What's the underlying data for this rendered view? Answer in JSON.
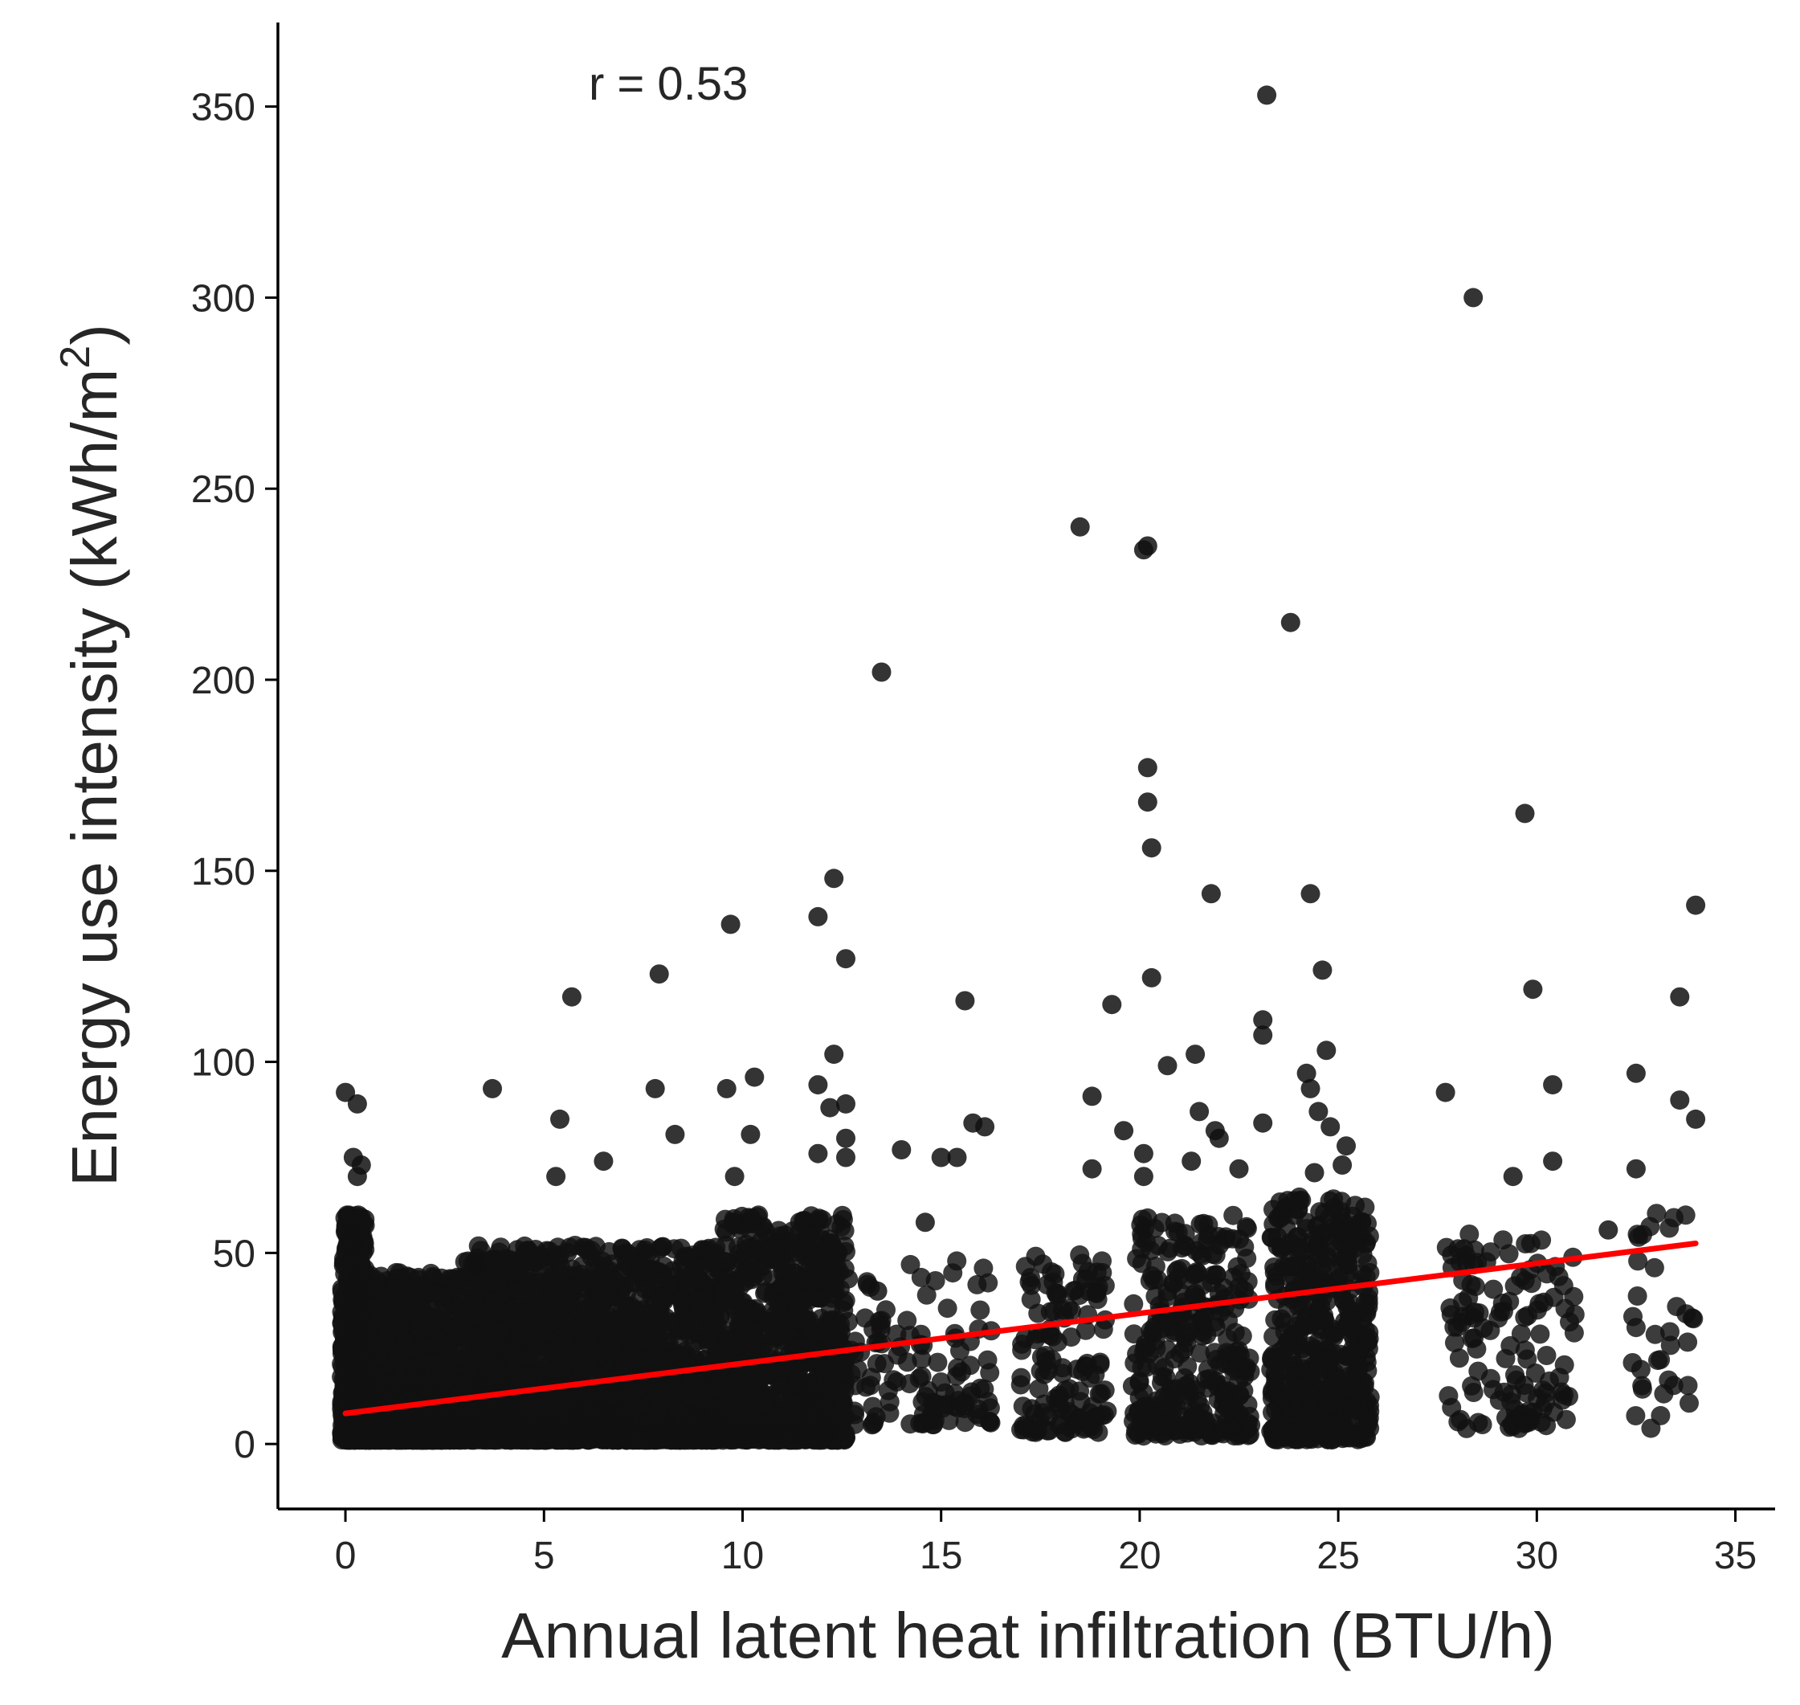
{
  "chart_data": {
    "type": "scatter",
    "title": "",
    "xlabel": "Annual latent heat infiltration (BTU/h)",
    "ylabel": "Energy use intensity (kWh/m",
    "ylabel_superscript": "2",
    "ylabel_close": ")",
    "xlim": [
      -1.7,
      36.0
    ],
    "ylim": [
      -17,
      372
    ],
    "xticks": [
      0,
      5,
      10,
      15,
      20,
      25,
      30,
      35
    ],
    "yticks": [
      0,
      50,
      100,
      150,
      200,
      250,
      300,
      350
    ],
    "annotation": "r = 0.53",
    "point_color": "#111111",
    "line_color": "#ff0000",
    "regression": {
      "x0": 0,
      "y0": 8,
      "x1": 34,
      "y1": 52.5
    },
    "outliers": [
      [
        23.2,
        353
      ],
      [
        28.4,
        300
      ],
      [
        18.5,
        240
      ],
      [
        20.2,
        235
      ],
      [
        20.1,
        234
      ],
      [
        23.8,
        215
      ],
      [
        13.5,
        202
      ],
      [
        20.2,
        177
      ],
      [
        20.2,
        168
      ],
      [
        29.7,
        165
      ],
      [
        20.3,
        156
      ],
      [
        12.3,
        148
      ],
      [
        21.8,
        144
      ],
      [
        24.3,
        144
      ],
      [
        34.0,
        141
      ],
      [
        11.9,
        138
      ],
      [
        9.7,
        136
      ],
      [
        12.6,
        127
      ],
      [
        24.6,
        124
      ],
      [
        7.9,
        123
      ],
      [
        20.3,
        122
      ],
      [
        29.9,
        119
      ],
      [
        5.7,
        117
      ],
      [
        15.6,
        116
      ],
      [
        19.3,
        115
      ],
      [
        33.6,
        117
      ],
      [
        23.1,
        111
      ],
      [
        23.1,
        107
      ],
      [
        12.3,
        102
      ],
      [
        24.7,
        103
      ],
      [
        21.4,
        102
      ],
      [
        20.7,
        99
      ],
      [
        24.2,
        97
      ],
      [
        32.5,
        97
      ],
      [
        10.3,
        96
      ],
      [
        9.6,
        93
      ],
      [
        3.7,
        93
      ],
      [
        7.8,
        93
      ],
      [
        0.0,
        92
      ],
      [
        27.7,
        92
      ],
      [
        30.4,
        94
      ],
      [
        18.8,
        91
      ],
      [
        11.9,
        94
      ],
      [
        24.3,
        93
      ],
      [
        33.6,
        90
      ],
      [
        0.3,
        89
      ],
      [
        12.2,
        88
      ],
      [
        12.6,
        89
      ],
      [
        21.5,
        87
      ],
      [
        5.4,
        85
      ],
      [
        34.0,
        85
      ],
      [
        15.8,
        84
      ],
      [
        16.1,
        83
      ],
      [
        23.1,
        84
      ],
      [
        24.5,
        87
      ],
      [
        24.8,
        83
      ],
      [
        10.2,
        81
      ],
      [
        8.3,
        81
      ],
      [
        19.6,
        82
      ],
      [
        21.9,
        82
      ],
      [
        22.0,
        80
      ],
      [
        12.6,
        80
      ],
      [
        25.2,
        78
      ],
      [
        14.0,
        77
      ],
      [
        20.1,
        76
      ],
      [
        11.9,
        76
      ],
      [
        6.5,
        74
      ],
      [
        15.4,
        75
      ],
      [
        15.0,
        75
      ],
      [
        30.4,
        74
      ],
      [
        0.2,
        75
      ],
      [
        0.4,
        73
      ],
      [
        12.6,
        75
      ],
      [
        21.3,
        74
      ],
      [
        25.1,
        73
      ],
      [
        32.5,
        72
      ],
      [
        22.5,
        72
      ],
      [
        29.4,
        70
      ],
      [
        5.3,
        70
      ],
      [
        0.3,
        70
      ],
      [
        9.8,
        70
      ],
      [
        18.8,
        72
      ],
      [
        24.4,
        71
      ],
      [
        20.1,
        70
      ],
      [
        13.4,
        40
      ],
      [
        14.6,
        58
      ],
      [
        3.3,
        47
      ],
      [
        31.8,
        56
      ]
    ],
    "clusters": [
      {
        "x": [
          -0.1,
          0.5
        ],
        "y": [
          1,
          60
        ],
        "n": 700,
        "skew": 1.6
      },
      {
        "x": [
          0.4,
          3.0
        ],
        "y": [
          1,
          45
        ],
        "n": 1000,
        "skew": 2.3
      },
      {
        "x": [
          3.0,
          6.0
        ],
        "y": [
          1,
          52
        ],
        "n": 1100,
        "skew": 2.1
      },
      {
        "x": [
          6.0,
          9.5
        ],
        "y": [
          1,
          52
        ],
        "n": 1100,
        "skew": 2.1
      },
      {
        "x": [
          9.5,
          12.6
        ],
        "y": [
          1,
          60
        ],
        "n": 900,
        "skew": 2.0
      },
      {
        "x": [
          12.6,
          16.3
        ],
        "y": [
          5,
          48
        ],
        "n": 120,
        "skew": 1.5
      },
      {
        "x": [
          17.0,
          19.2
        ],
        "y": [
          3,
          50
        ],
        "n": 130,
        "skew": 1.5
      },
      {
        "x": [
          19.8,
          22.8
        ],
        "y": [
          2,
          60
        ],
        "n": 320,
        "skew": 1.6
      },
      {
        "x": [
          23.3,
          25.8
        ],
        "y": [
          1,
          65
        ],
        "n": 500,
        "skew": 1.5
      },
      {
        "x": [
          27.7,
          31.0
        ],
        "y": [
          4,
          55
        ],
        "n": 130,
        "skew": 1.3
      },
      {
        "x": [
          32.4,
          34.0
        ],
        "y": [
          3,
          62
        ],
        "n": 35,
        "skew": 1.2
      }
    ]
  }
}
